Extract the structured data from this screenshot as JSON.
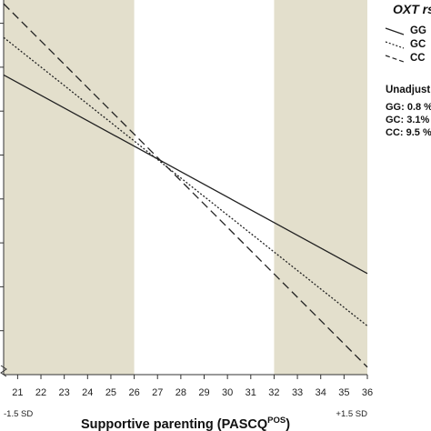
{
  "chart_data": {
    "type": "line",
    "x_title_main": "Supportive parenting (PASCQ",
    "x_title_sup": "POS",
    "x_title_end": ")",
    "x_ticks": [
      21,
      22,
      23,
      24,
      25,
      26,
      27,
      28,
      29,
      30,
      31,
      32,
      33,
      34,
      35,
      36
    ],
    "xlim": [
      20.4,
      36
    ],
    "ylim": [
      0,
      100
    ],
    "sd_labels": {
      "low": "-1.5 SD",
      "high": "+1.5 SD"
    },
    "shaded_regions": [
      [
        20.4,
        26
      ],
      [
        32,
        36
      ]
    ],
    "shade_color": "#e3dfcc",
    "legend_title": "OXT rs",
    "series": [
      {
        "name": "GG",
        "style": "solid",
        "x": [
          20.4,
          36
        ],
        "y": [
          80,
          27
        ]
      },
      {
        "name": "GC",
        "style": "dotted",
        "x": [
          20.4,
          36
        ],
        "y": [
          90,
          13
        ]
      },
      {
        "name": "CC",
        "style": "dashed",
        "x": [
          20.4,
          36
        ],
        "y": [
          99,
          2
        ]
      }
    ],
    "stats_title": "Unadjust",
    "stats": [
      "GG: 0.8 %",
      "GC: 3.1%",
      "CC: 9.5 %"
    ]
  }
}
